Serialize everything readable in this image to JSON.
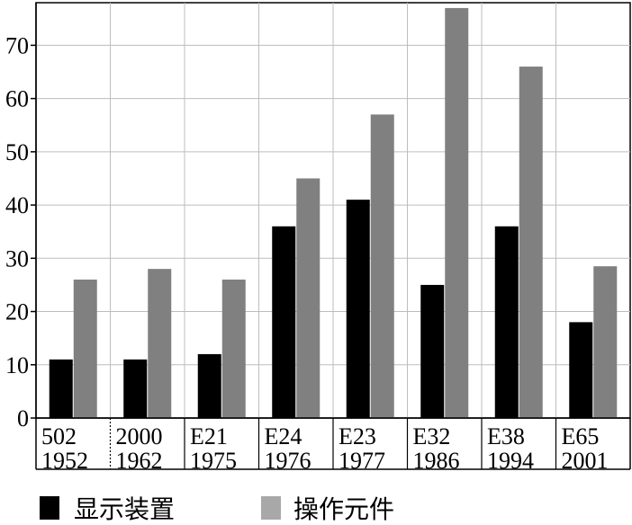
{
  "chart_data": {
    "type": "bar",
    "title": "",
    "xlabel": "",
    "ylabel": "",
    "ylim": [
      0,
      78
    ],
    "yticks": [
      0,
      10,
      20,
      30,
      40,
      50,
      60,
      70
    ],
    "grid": true,
    "legend_position": "bottom",
    "categories": [
      [
        "502",
        "1952"
      ],
      [
        "2000",
        "1962"
      ],
      [
        "E21",
        "1975"
      ],
      [
        "E24",
        "1976"
      ],
      [
        "E23",
        "1977"
      ],
      [
        "E32",
        "1986"
      ],
      [
        "E38",
        "1994"
      ],
      [
        "E65",
        "2001"
      ]
    ],
    "series": [
      {
        "name": "显示装置",
        "color": "#000000",
        "values": [
          11,
          11,
          12,
          36,
          41,
          25,
          36,
          18
        ]
      },
      {
        "name": "操作元件",
        "color": "#808080",
        "values": [
          26,
          28,
          26,
          45,
          57,
          77,
          66,
          28.5
        ]
      }
    ]
  }
}
